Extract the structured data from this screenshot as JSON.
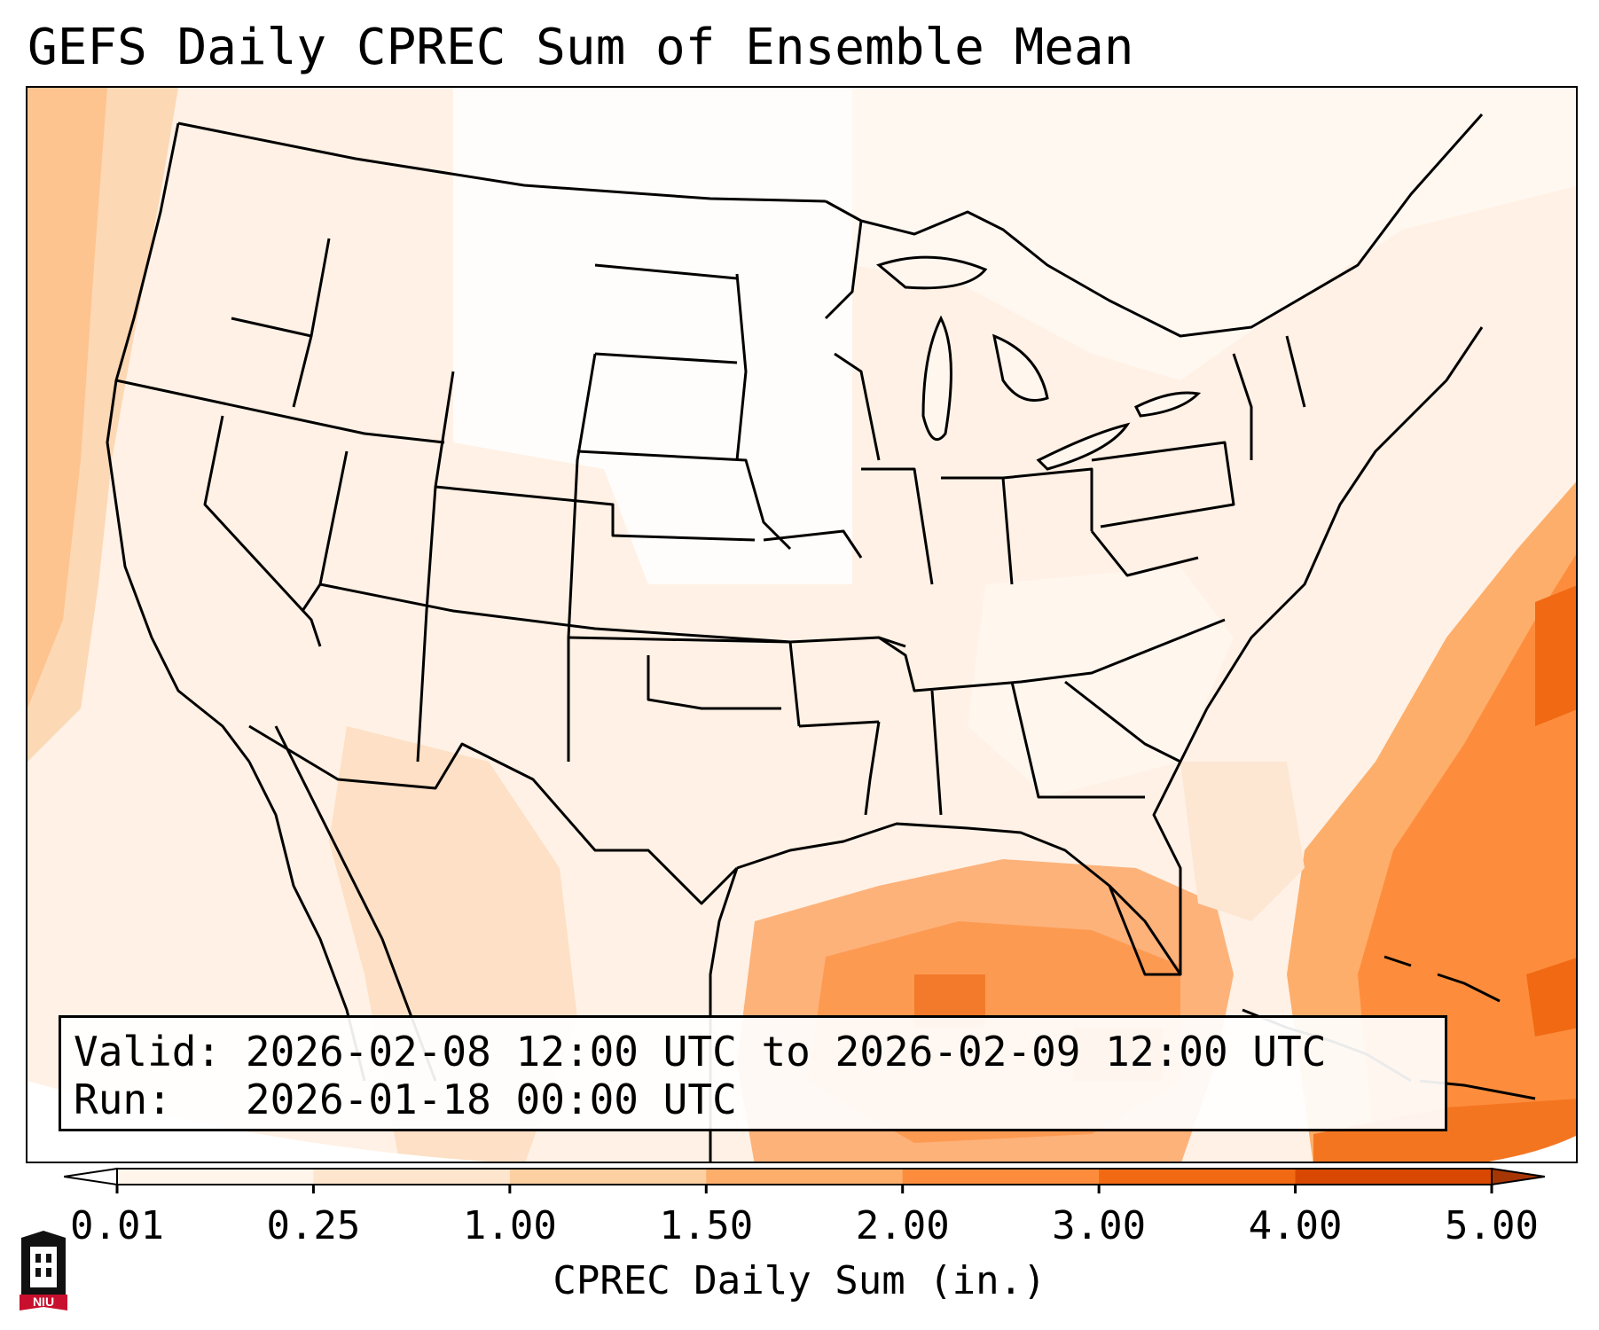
{
  "title": "GEFS Daily CPREC Sum of Ensemble Mean",
  "info": {
    "valid_label": "Valid:",
    "valid_value": "2026-02-08 12:00 UTC to 2026-02-09 12:00 UTC",
    "run_label": "Run:",
    "run_value": "2026-01-18 00:00 UTC"
  },
  "colorbar": {
    "label": "CPREC Daily Sum (in.)",
    "ticks": [
      "0.01",
      "0.25",
      "1.00",
      "1.50",
      "2.00",
      "3.00",
      "4.00",
      "5.00"
    ],
    "colors": [
      "#fff5eb",
      "#fee6ce",
      "#fdd0a2",
      "#fdae6b",
      "#fd8d3c",
      "#f16913",
      "#d94801"
    ],
    "under_color": "#ffffff",
    "over_color": "#a63603",
    "extend": "both"
  },
  "logo": {
    "text": "NIU",
    "color": "#c8102e"
  }
}
